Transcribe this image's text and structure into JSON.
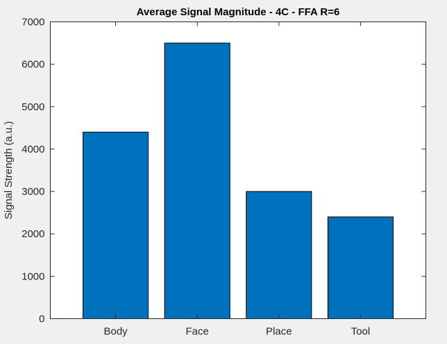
{
  "window": {
    "background_color": "#f0f0f0"
  },
  "chart_data": {
    "type": "bar",
    "title": "Average Signal Magnitude - 4C - FFA R=6",
    "xlabel": "",
    "ylabel": "Signal Strength (a.u.)",
    "categories": [
      "Body",
      "Face",
      "Place",
      "Tool"
    ],
    "values": [
      4400,
      6500,
      3000,
      2400
    ],
    "xlim": [
      0.2,
      4.8
    ],
    "ylim": [
      0,
      7000
    ],
    "yticks": [
      0,
      1000,
      2000,
      3000,
      4000,
      5000,
      6000,
      7000
    ],
    "grid": false,
    "bar_color": "#0072bd",
    "bar_edge_color": "#000000",
    "axes_background": "#ffffff"
  }
}
